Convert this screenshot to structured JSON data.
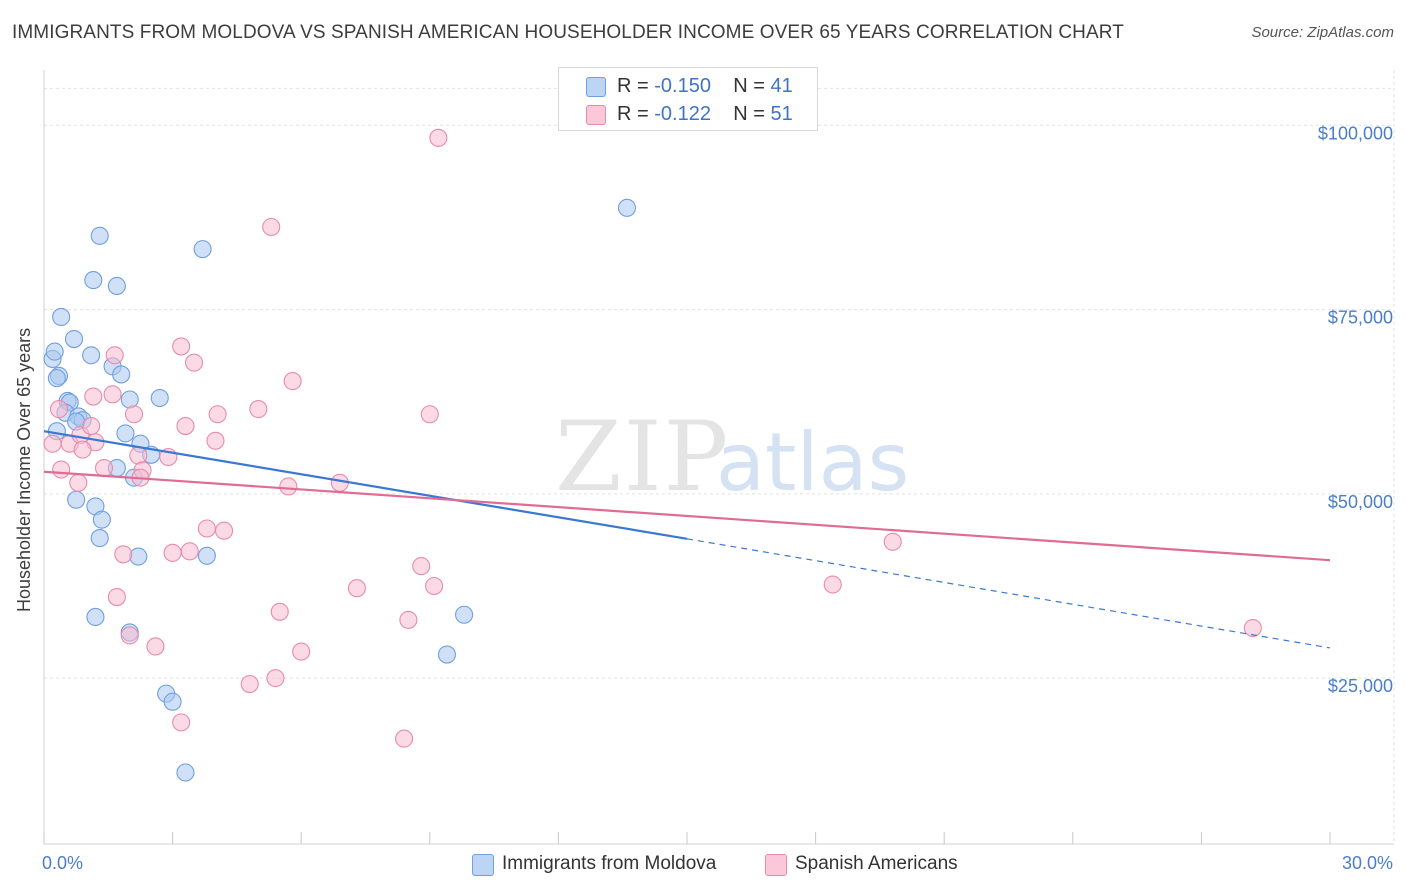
{
  "title": "IMMIGRANTS FROM MOLDOVA VS SPANISH AMERICAN HOUSEHOLDER INCOME OVER 65 YEARS CORRELATION CHART",
  "source": "Source: ZipAtlas.com",
  "watermark": {
    "zip": "ZIP",
    "atlas": "atlas"
  },
  "legend": {
    "rows": [
      {
        "r_label": "R = ",
        "r_value": "-0.150",
        "n_label": "N = ",
        "n_value": "41"
      },
      {
        "r_label": "R = ",
        "r_value": "-0.122",
        "n_label": "N = ",
        "n_value": "51"
      }
    ]
  },
  "chart_data": {
    "type": "scatter",
    "title": "IMMIGRANTS FROM MOLDOVA VS SPANISH AMERICAN HOUSEHOLDER INCOME OVER 65 YEARS CORRELATION CHART",
    "xlabel": "",
    "ylabel": "Householder Income Over 65 years",
    "xlim": [
      0,
      30
    ],
    "ylim": [
      2500,
      107500
    ],
    "x_tick_labels": [
      "0.0%",
      "30.0%"
    ],
    "y_ticks": [
      25000,
      50000,
      75000,
      100000
    ],
    "y_tick_labels": [
      "$25,000",
      "$50,000",
      "$75,000",
      "$100,000"
    ],
    "grid": true,
    "legend_position": "top-center",
    "series": [
      {
        "name": "Immigrants from Moldova",
        "color": "#a9c8f0",
        "edge": "#6f9fe0",
        "line_color": "#3a78d4",
        "points": [
          [
            0.3,
            58500
          ],
          [
            0.2,
            68300
          ],
          [
            0.25,
            69300
          ],
          [
            0.35,
            66000
          ],
          [
            0.3,
            65700
          ],
          [
            0.4,
            74000
          ],
          [
            0.7,
            71000
          ],
          [
            0.55,
            62600
          ],
          [
            0.6,
            62400
          ],
          [
            0.5,
            61000
          ],
          [
            0.8,
            60500
          ],
          [
            0.9,
            60000
          ],
          [
            0.75,
            59800
          ],
          [
            1.1,
            68800
          ],
          [
            1.3,
            85000
          ],
          [
            1.15,
            79000
          ],
          [
            1.7,
            78200
          ],
          [
            1.6,
            67300
          ],
          [
            1.8,
            66200
          ],
          [
            1.9,
            58200
          ],
          [
            2.0,
            62800
          ],
          [
            2.25,
            56800
          ],
          [
            2.5,
            55300
          ],
          [
            2.7,
            63000
          ],
          [
            2.1,
            52200
          ],
          [
            1.7,
            53500
          ],
          [
            1.2,
            48300
          ],
          [
            1.35,
            46500
          ],
          [
            0.75,
            49200
          ],
          [
            1.3,
            44000
          ],
          [
            2.2,
            41500
          ],
          [
            3.7,
            83200
          ],
          [
            3.8,
            41600
          ],
          [
            1.2,
            33300
          ],
          [
            2.0,
            31200
          ],
          [
            2.85,
            22900
          ],
          [
            3.0,
            21800
          ],
          [
            3.3,
            12200
          ],
          [
            13.6,
            88800
          ],
          [
            9.8,
            33600
          ],
          [
            9.4,
            28200
          ]
        ],
        "trend": {
          "x": [
            0,
            15
          ],
          "y": [
            58500,
            43900
          ]
        },
        "trend_dashed": {
          "x": [
            15,
            30
          ],
          "y": [
            43900,
            29100
          ]
        }
      },
      {
        "name": "Spanish Americans",
        "color": "#f7bcd0",
        "edge": "#e88bab",
        "line_color": "#e06b93",
        "points": [
          [
            0.2,
            56800
          ],
          [
            0.35,
            61500
          ],
          [
            0.4,
            53300
          ],
          [
            0.6,
            56800
          ],
          [
            0.8,
            51500
          ],
          [
            0.85,
            58000
          ],
          [
            1.1,
            59200
          ],
          [
            1.15,
            63200
          ],
          [
            1.2,
            57000
          ],
          [
            1.4,
            53500
          ],
          [
            1.6,
            63500
          ],
          [
            1.65,
            68800
          ],
          [
            2.1,
            60800
          ],
          [
            2.2,
            55200
          ],
          [
            2.3,
            53200
          ],
          [
            2.25,
            52200
          ],
          [
            2.9,
            55000
          ],
          [
            3.2,
            70000
          ],
          [
            3.5,
            67800
          ],
          [
            3.3,
            59200
          ],
          [
            3.0,
            42000
          ],
          [
            3.4,
            42200
          ],
          [
            3.8,
            45300
          ],
          [
            4.2,
            45000
          ],
          [
            4.0,
            57200
          ],
          [
            4.05,
            60800
          ],
          [
            5.0,
            61500
          ],
          [
            5.3,
            86200
          ],
          [
            5.8,
            65300
          ],
          [
            5.7,
            51000
          ],
          [
            6.9,
            51500
          ],
          [
            9.0,
            60800
          ],
          [
            9.2,
            98300
          ],
          [
            8.8,
            40200
          ],
          [
            9.1,
            37500
          ],
          [
            7.3,
            37200
          ],
          [
            8.5,
            32900
          ],
          [
            5.5,
            34000
          ],
          [
            6.0,
            28600
          ],
          [
            4.8,
            24200
          ],
          [
            5.4,
            25000
          ],
          [
            8.4,
            16800
          ],
          [
            3.2,
            19000
          ],
          [
            1.7,
            36000
          ],
          [
            2.0,
            30800
          ],
          [
            2.6,
            29300
          ],
          [
            1.85,
            41800
          ],
          [
            18.4,
            37700
          ],
          [
            19.8,
            43500
          ],
          [
            28.2,
            31800
          ],
          [
            0.9,
            56000
          ]
        ],
        "trend": {
          "x": [
            0,
            30
          ],
          "y": [
            53000,
            41000
          ]
        }
      }
    ]
  }
}
